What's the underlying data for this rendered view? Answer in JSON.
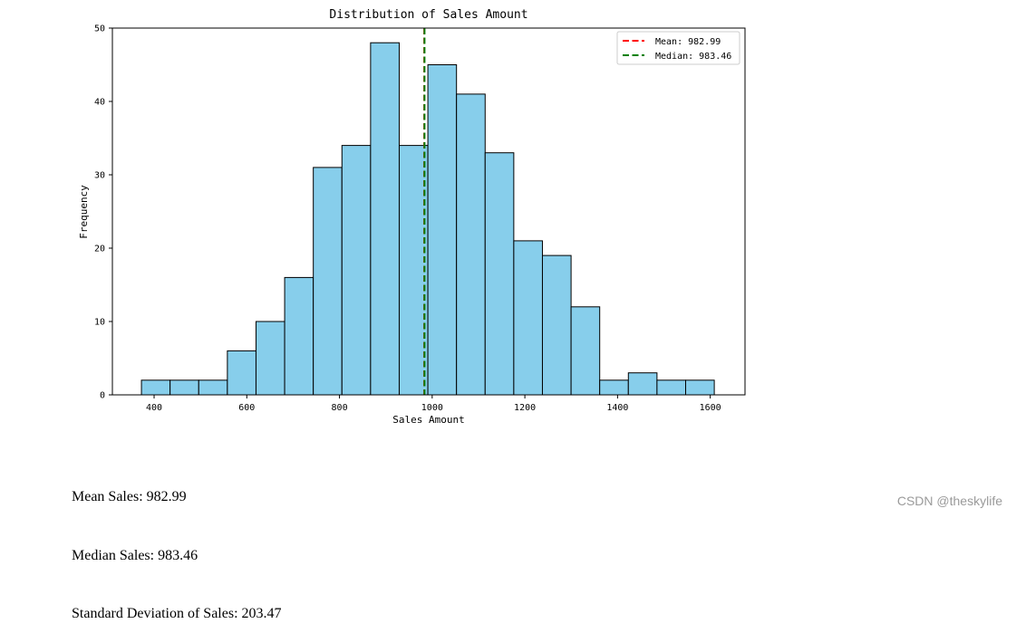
{
  "chart_data": {
    "type": "bar",
    "subtype": "histogram",
    "title": "Distribution of Sales Amount",
    "xlabel": "Sales Amount",
    "ylabel": "Frequency",
    "xlim": [
      310,
      1675
    ],
    "ylim": [
      0,
      50
    ],
    "xticks": [
      400,
      600,
      800,
      1000,
      1200,
      1400,
      1600
    ],
    "yticks": [
      0,
      10,
      20,
      30,
      40,
      50
    ],
    "bin_start": 372.7,
    "bin_width": 61.8,
    "counts": [
      2,
      2,
      2,
      6,
      10,
      16,
      31,
      34,
      48,
      34,
      45,
      41,
      33,
      21,
      19,
      12,
      2,
      3,
      2,
      2
    ],
    "bar_color": "#87ceeb",
    "edge_color": "#000000",
    "grid": false,
    "legend_position": "upper right",
    "reference_lines": [
      {
        "label": "Mean: 982.99",
        "value": 982.99,
        "color": "#ff0000",
        "style": "dashed"
      },
      {
        "label": "Median: 983.46",
        "value": 983.46,
        "color": "#008000",
        "style": "dashed"
      }
    ]
  },
  "stats": [
    "Mean Sales: 982.99",
    "Median Sales: 983.46",
    "Standard Deviation of Sales: 203.47"
  ],
  "watermark": "CSDN @theskylife"
}
